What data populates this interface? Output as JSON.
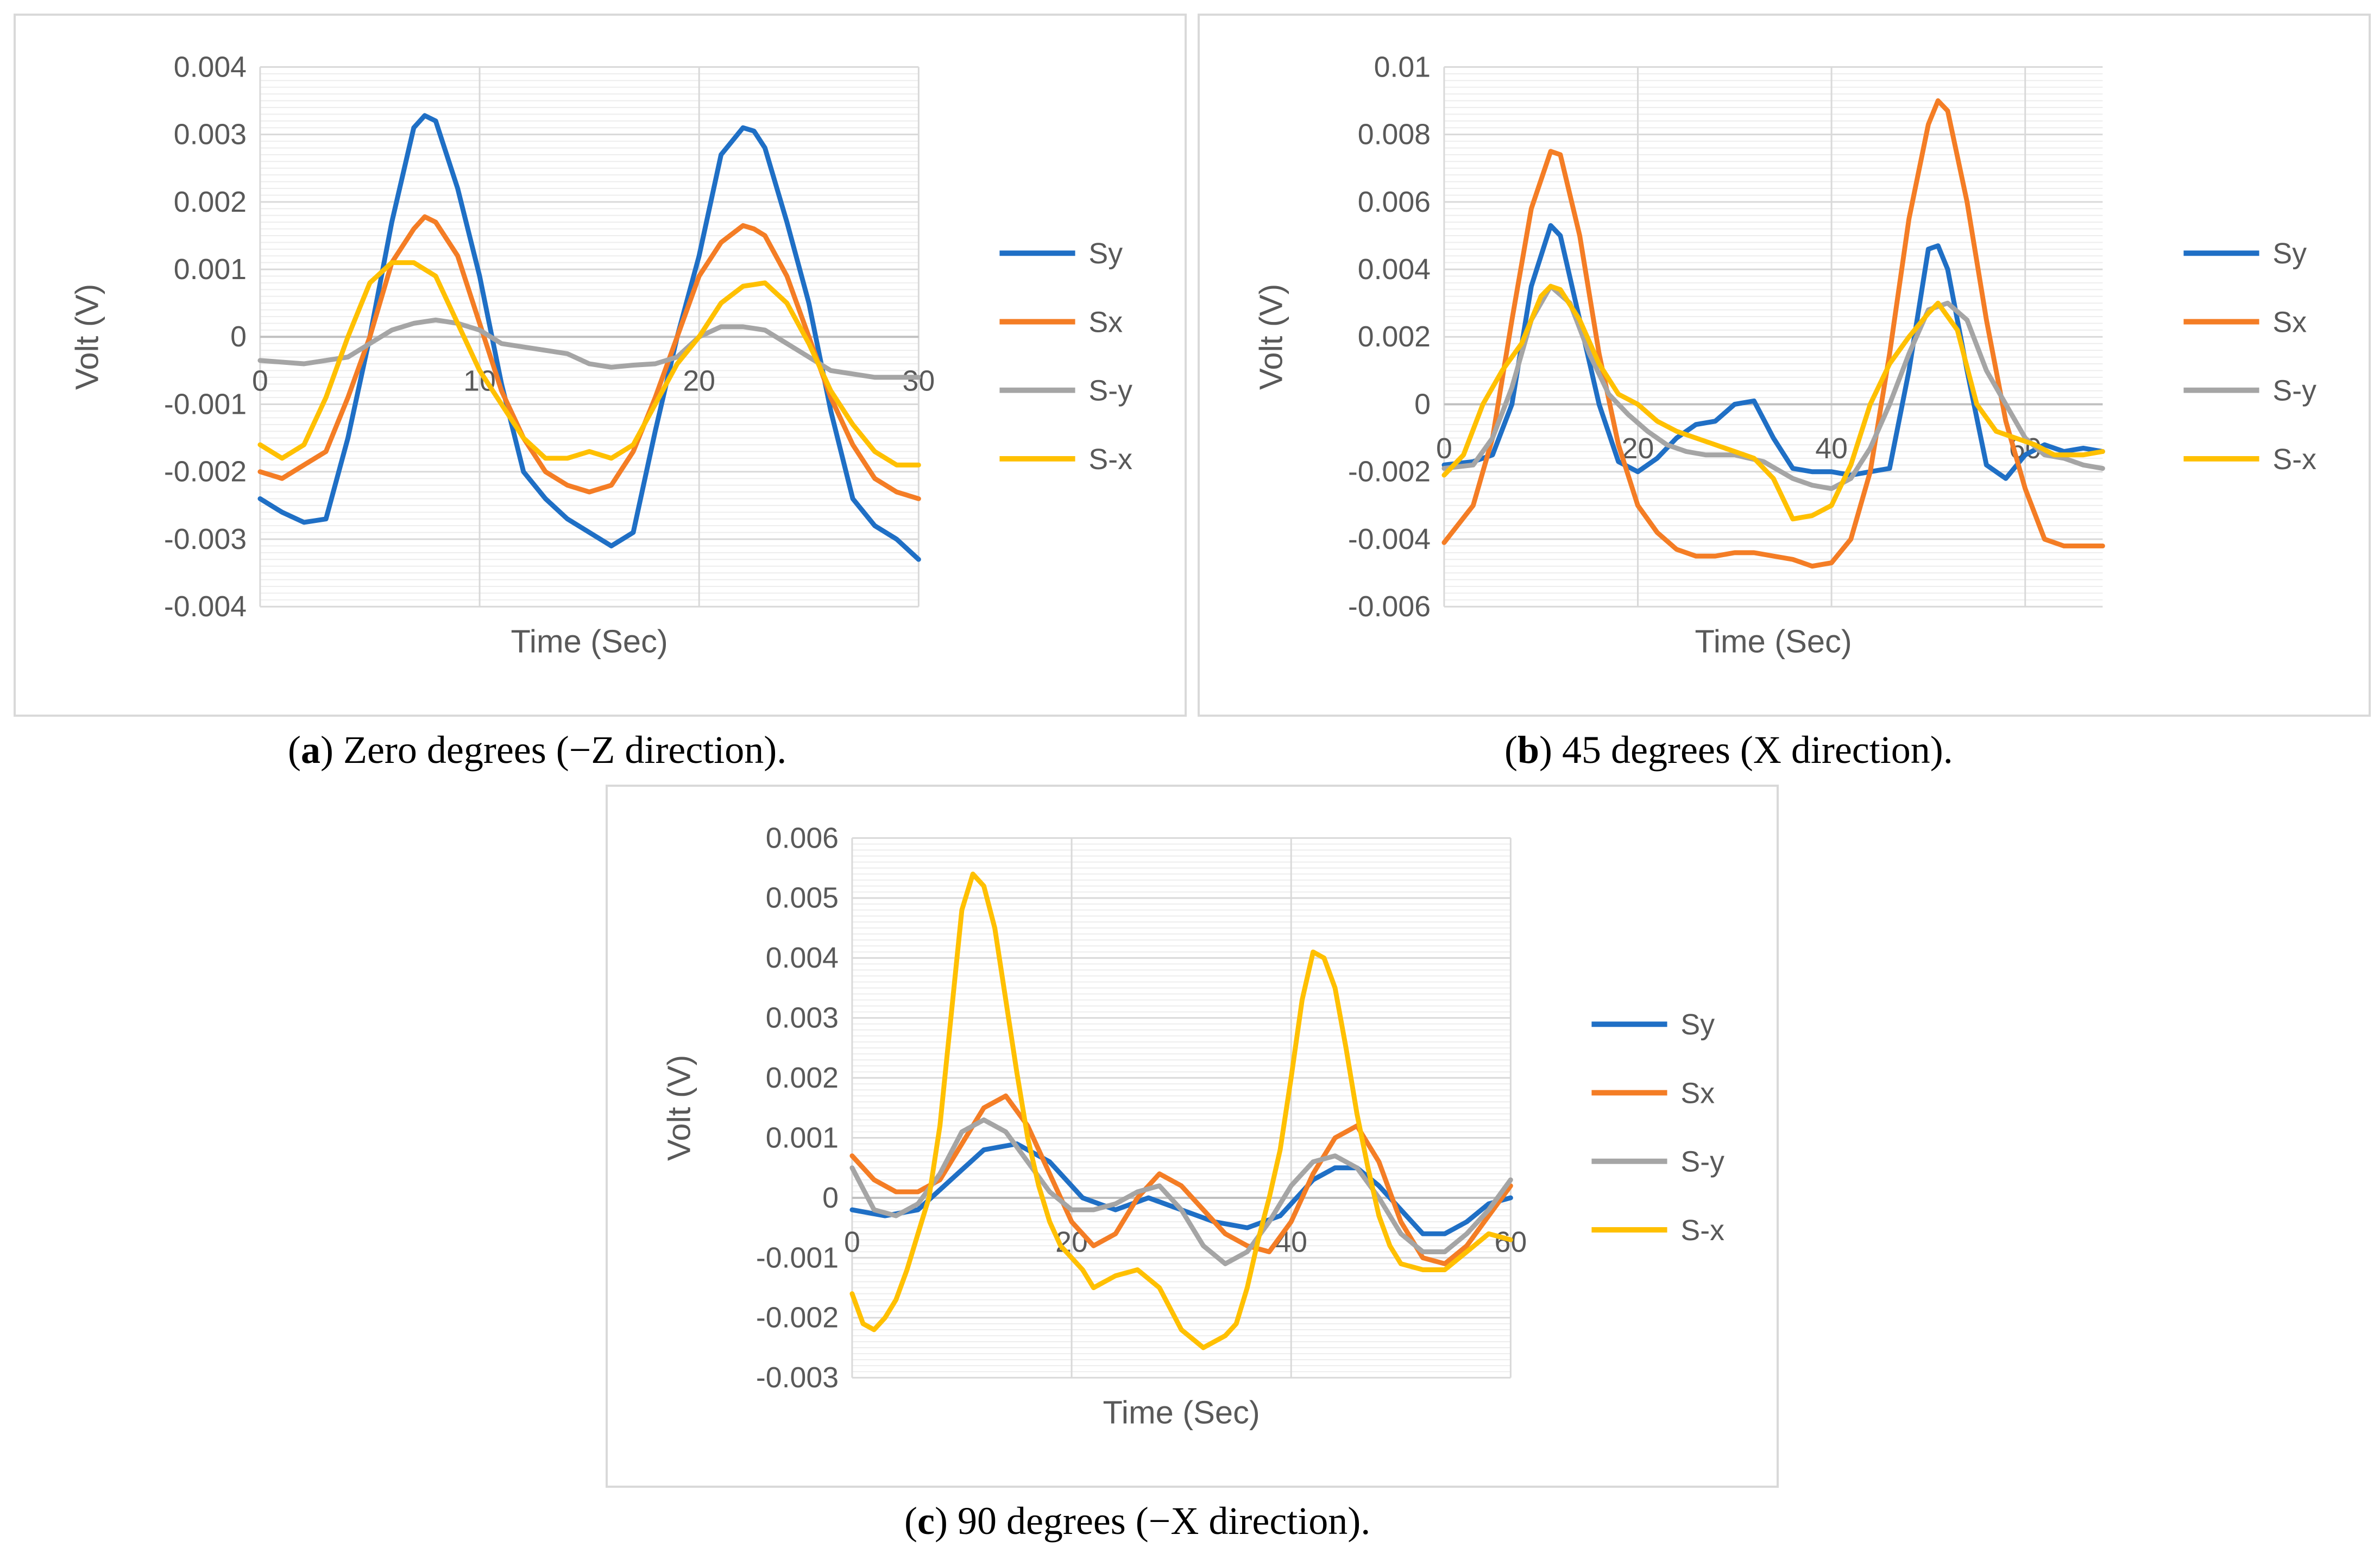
{
  "colors": {
    "Sy": "#1f6fc5",
    "Sx": "#f47d25",
    "S-y": "#a5a5a5",
    "S-x": "#ffc000",
    "grid_major": "#d9d9d9",
    "grid_minor": "#ededed",
    "axis_text": "#595959"
  },
  "chart_data": [
    {
      "id": "a",
      "type": "line",
      "caption_label": "a",
      "caption_text": "Zero degrees (−Z direction).",
      "xlabel": "Time (Sec)",
      "ylabel": "Volt (V)",
      "xlim": [
        0,
        30
      ],
      "ylim": [
        -0.004,
        0.004
      ],
      "xticks": [
        0,
        10,
        20,
        30
      ],
      "yticks": [
        -0.004,
        -0.003,
        -0.002,
        -0.001,
        0,
        0.001,
        0.002,
        0.003,
        0.004
      ],
      "ytick_labels": [
        "-0.004",
        "-0.003",
        "-0.002",
        "-0.001",
        "0",
        "0.001",
        "0.002",
        "0.003",
        "0.004"
      ],
      "xtick_labels": [
        "0",
        "10",
        "20",
        "30"
      ],
      "legend": [
        "Sy",
        "Sx",
        "S-y",
        "S-x"
      ],
      "series": [
        {
          "name": "Sy",
          "x": [
            0,
            1,
            2,
            3,
            4,
            5,
            6,
            7,
            7.5,
            8,
            9,
            10,
            11,
            12,
            13,
            14,
            15,
            16,
            17,
            18,
            19,
            20,
            21,
            22,
            22.5,
            23,
            24,
            25,
            26,
            27,
            28,
            29,
            30
          ],
          "y": [
            -0.0024,
            -0.0026,
            -0.00275,
            -0.0027,
            -0.0015,
            0,
            0.0017,
            0.0031,
            0.00328,
            0.0032,
            0.0022,
            0.0009,
            -0.0007,
            -0.002,
            -0.0024,
            -0.0027,
            -0.0029,
            -0.0031,
            -0.0029,
            -0.0014,
            0,
            0.0012,
            0.0027,
            0.0031,
            0.00305,
            0.0028,
            0.0017,
            0.0005,
            -0.0011,
            -0.0024,
            -0.0028,
            -0.003,
            -0.0033
          ]
        },
        {
          "name": "Sx",
          "x": [
            0,
            1,
            2,
            3,
            4,
            5,
            6,
            7,
            7.5,
            8,
            9,
            10,
            11,
            12,
            13,
            14,
            15,
            16,
            17,
            18,
            19,
            20,
            21,
            22,
            22.5,
            23,
            24,
            25,
            26,
            27,
            28,
            29,
            30
          ],
          "y": [
            -0.002,
            -0.0021,
            -0.0019,
            -0.0017,
            -0.0009,
            0,
            0.0011,
            0.0016,
            0.00178,
            0.0017,
            0.0012,
            0.0002,
            -0.0008,
            -0.0015,
            -0.002,
            -0.0022,
            -0.0023,
            -0.0022,
            -0.0017,
            -0.0009,
            0,
            0.0009,
            0.0014,
            0.00165,
            0.0016,
            0.0015,
            0.0009,
            0,
            -0.0009,
            -0.0016,
            -0.0021,
            -0.0023,
            -0.0024
          ]
        },
        {
          "name": "S-y",
          "x": [
            0,
            2,
            4,
            5,
            6,
            7,
            8,
            9,
            10,
            11,
            12,
            13,
            14,
            15,
            16,
            17,
            18,
            19,
            20,
            21,
            22,
            23,
            24,
            25,
            26,
            27,
            28,
            29,
            30
          ],
          "y": [
            -0.00035,
            -0.0004,
            -0.0003,
            -0.0001,
            0.0001,
            0.0002,
            0.00025,
            0.0002,
            0.0001,
            -0.0001,
            -0.00015,
            -0.0002,
            -0.00025,
            -0.0004,
            -0.00045,
            -0.00042,
            -0.0004,
            -0.0003,
            0,
            0.00015,
            0.00015,
            0.0001,
            -0.0001,
            -0.0003,
            -0.0005,
            -0.00055,
            -0.0006,
            -0.0006,
            -0.0006
          ]
        },
        {
          "name": "S-x",
          "x": [
            0,
            1,
            2,
            3,
            4,
            5,
            6,
            7,
            8,
            9,
            10,
            11,
            12,
            13,
            14,
            15,
            16,
            17,
            18,
            19,
            20,
            21,
            22,
            23,
            24,
            25,
            26,
            27,
            28,
            29,
            30
          ],
          "y": [
            -0.0016,
            -0.0018,
            -0.0016,
            -0.0009,
            0,
            0.0008,
            0.0011,
            0.0011,
            0.0009,
            0.0002,
            -0.0005,
            -0.001,
            -0.0015,
            -0.0018,
            -0.0018,
            -0.0017,
            -0.0018,
            -0.0016,
            -0.001,
            -0.0004,
            0,
            0.0005,
            0.00075,
            0.0008,
            0.0005,
            -0.0001,
            -0.0008,
            -0.0013,
            -0.0017,
            -0.0019,
            -0.0019
          ]
        }
      ]
    },
    {
      "id": "b",
      "type": "line",
      "caption_label": "b",
      "caption_text": "45 degrees (X direction).",
      "xlabel": "Time (Sec)",
      "ylabel": "Volt (V)",
      "xlim": [
        0,
        68
      ],
      "ylim": [
        -0.006,
        0.01
      ],
      "xticks": [
        0,
        20,
        40,
        60
      ],
      "yticks": [
        -0.006,
        -0.004,
        -0.002,
        0,
        0.002,
        0.004,
        0.006,
        0.008,
        0.01
      ],
      "ytick_labels": [
        "-0.006",
        "-0.004",
        "-0.002",
        "0",
        "0.002",
        "0.004",
        "0.006",
        "0.008",
        "0.01"
      ],
      "xtick_labels": [
        "0",
        "20",
        "40",
        "60"
      ],
      "legend": [
        "Sy",
        "Sx",
        "S-y",
        "S-x"
      ],
      "series": [
        {
          "name": "Sy",
          "x": [
            0,
            3,
            5,
            7,
            9,
            11,
            12,
            14,
            16,
            18,
            20,
            22,
            24,
            26,
            28,
            30,
            32,
            34,
            36,
            38,
            40,
            42,
            44,
            46,
            48,
            50,
            51,
            52,
            54,
            56,
            58,
            60,
            62,
            64,
            66,
            68
          ],
          "y": [
            -0.0018,
            -0.0017,
            -0.0015,
            0,
            0.0035,
            0.0053,
            0.005,
            0.0025,
            0,
            -0.0017,
            -0.002,
            -0.0016,
            -0.001,
            -0.0006,
            -0.0005,
            0,
            0.0001,
            -0.001,
            -0.0019,
            -0.002,
            -0.002,
            -0.0021,
            -0.002,
            -0.0019,
            0.001,
            0.0046,
            0.0047,
            0.004,
            0.001,
            -0.0018,
            -0.0022,
            -0.0015,
            -0.0012,
            -0.0014,
            -0.0013,
            -0.0014
          ]
        },
        {
          "name": "Sx",
          "x": [
            0,
            3,
            5,
            7,
            9,
            11,
            12,
            14,
            16,
            18,
            20,
            22,
            24,
            26,
            28,
            30,
            32,
            34,
            36,
            38,
            40,
            42,
            44,
            46,
            48,
            50,
            51,
            52,
            54,
            56,
            58,
            60,
            62,
            64,
            66,
            68
          ],
          "y": [
            -0.0041,
            -0.003,
            -0.001,
            0.0025,
            0.0058,
            0.0075,
            0.0074,
            0.005,
            0.0015,
            -0.0012,
            -0.003,
            -0.0038,
            -0.0043,
            -0.0045,
            -0.0045,
            -0.0044,
            -0.0044,
            -0.0045,
            -0.0046,
            -0.0048,
            -0.0047,
            -0.004,
            -0.002,
            0.0015,
            0.0055,
            0.0083,
            0.009,
            0.0087,
            0.006,
            0.0025,
            -0.0005,
            -0.0025,
            -0.004,
            -0.0042,
            -0.0042,
            -0.0042
          ]
        },
        {
          "name": "S-y",
          "x": [
            0,
            3,
            5,
            7,
            9,
            11,
            13,
            15,
            17,
            19,
            21,
            23,
            25,
            27,
            30,
            33,
            36,
            38,
            40,
            42,
            44,
            46,
            48,
            50,
            52,
            54,
            56,
            58,
            60,
            62,
            64,
            66,
            68
          ],
          "y": [
            -0.0019,
            -0.0018,
            -0.001,
            0.0005,
            0.0025,
            0.0035,
            0.003,
            0.0015,
            0.0003,
            -0.0003,
            -0.0008,
            -0.0012,
            -0.0014,
            -0.0015,
            -0.0015,
            -0.0017,
            -0.0022,
            -0.0024,
            -0.0025,
            -0.0022,
            -0.0013,
            0,
            0.0015,
            0.0028,
            0.003,
            0.0025,
            0.001,
            0,
            -0.001,
            -0.0015,
            -0.0016,
            -0.0018,
            -0.0019
          ]
        },
        {
          "name": "S-x",
          "x": [
            0,
            2,
            4,
            6,
            8,
            10,
            11,
            12,
            14,
            16,
            18,
            20,
            22,
            24,
            26,
            28,
            30,
            32,
            34,
            36,
            38,
            40,
            42,
            44,
            46,
            48,
            50,
            51,
            53,
            55,
            57,
            59,
            61,
            63,
            66,
            68
          ],
          "y": [
            -0.0021,
            -0.0015,
            0,
            0.001,
            0.0018,
            0.0032,
            0.0035,
            0.0034,
            0.0025,
            0.0012,
            0.0003,
            0,
            -0.0005,
            -0.0008,
            -0.001,
            -0.0012,
            -0.0014,
            -0.0016,
            -0.0022,
            -0.0034,
            -0.0033,
            -0.003,
            -0.0018,
            0,
            0.0012,
            0.002,
            0.0027,
            0.003,
            0.0022,
            0,
            -0.0008,
            -0.001,
            -0.0012,
            -0.0015,
            -0.0015,
            -0.0014
          ]
        }
      ]
    },
    {
      "id": "c",
      "type": "line",
      "caption_label": "c",
      "caption_text": "90 degrees (−X direction).",
      "xlabel": "Time (Sec)",
      "ylabel": "Volt (V)",
      "xlim": [
        0,
        60
      ],
      "ylim": [
        -0.003,
        0.006
      ],
      "xticks": [
        0,
        20,
        40,
        60
      ],
      "yticks": [
        -0.003,
        -0.002,
        -0.001,
        0,
        0.001,
        0.002,
        0.003,
        0.004,
        0.005,
        0.006
      ],
      "ytick_labels": [
        "-0.003",
        "-0.002",
        "-0.001",
        "0",
        "0.001",
        "0.002",
        "0.003",
        "0.004",
        "0.005",
        "0.006"
      ],
      "xtick_labels": [
        "0",
        "20",
        "40",
        "60"
      ],
      "legend": [
        "Sy",
        "Sx",
        "S-y",
        "S-x"
      ],
      "series": [
        {
          "name": "Sy",
          "x": [
            0,
            3,
            6,
            9,
            12,
            15,
            18,
            21,
            24,
            27,
            30,
            33,
            36,
            39,
            42,
            44,
            46,
            48,
            50,
            52,
            54,
            56,
            58,
            60
          ],
          "y": [
            -0.0002,
            -0.0003,
            -0.0002,
            0.0003,
            0.0008,
            0.0009,
            0.0006,
            0,
            -0.0002,
            0,
            -0.0002,
            -0.0004,
            -0.0005,
            -0.0003,
            0.0003,
            0.0005,
            0.0005,
            0.0002,
            -0.0002,
            -0.0006,
            -0.0006,
            -0.0004,
            -0.0001,
            0
          ]
        },
        {
          "name": "Sx",
          "x": [
            0,
            2,
            4,
            6,
            8,
            10,
            12,
            14,
            16,
            18,
            20,
            22,
            24,
            26,
            28,
            30,
            32,
            34,
            36,
            38,
            40,
            42,
            44,
            46,
            48,
            50,
            52,
            54,
            56,
            58,
            60
          ],
          "y": [
            0.0007,
            0.0003,
            0.0001,
            0.0001,
            0.0003,
            0.0009,
            0.0015,
            0.0017,
            0.0012,
            0.0004,
            -0.0004,
            -0.0008,
            -0.0006,
            0,
            0.0004,
            0.0002,
            -0.0002,
            -0.0006,
            -0.0008,
            -0.0009,
            -0.0004,
            0.0004,
            0.001,
            0.0012,
            0.0006,
            -0.0004,
            -0.001,
            -0.0011,
            -0.0008,
            -0.0003,
            0.0002
          ]
        },
        {
          "name": "S-y",
          "x": [
            0,
            2,
            4,
            6,
            8,
            10,
            12,
            14,
            16,
            18,
            20,
            22,
            24,
            26,
            28,
            30,
            32,
            34,
            36,
            38,
            40,
            42,
            44,
            46,
            48,
            50,
            52,
            54,
            56,
            58,
            60
          ],
          "y": [
            0.0005,
            -0.0002,
            -0.0003,
            -0.0001,
            0.0004,
            0.0011,
            0.0013,
            0.0011,
            0.0006,
            0.0001,
            -0.0002,
            -0.0002,
            -0.0001,
            0.0001,
            0.0002,
            -0.0002,
            -0.0008,
            -0.0011,
            -0.0009,
            -0.0004,
            0.0002,
            0.0006,
            0.0007,
            0.0005,
            0,
            -0.0006,
            -0.0009,
            -0.0009,
            -0.0006,
            -0.0002,
            0.0003
          ]
        },
        {
          "name": "S-x",
          "x": [
            0,
            1,
            2,
            3,
            4,
            5,
            6,
            7,
            8,
            9,
            10,
            11,
            12,
            13,
            14,
            15,
            16,
            17,
            18,
            19,
            20,
            21,
            22,
            24,
            26,
            28,
            30,
            32,
            33,
            34,
            35,
            36,
            37,
            38,
            39,
            40,
            41,
            42,
            43,
            44,
            45,
            46,
            47,
            48,
            49,
            50,
            52,
            54,
            56,
            58,
            60
          ],
          "y": [
            -0.0016,
            -0.0021,
            -0.0022,
            -0.002,
            -0.0017,
            -0.0012,
            -0.0006,
            0,
            0.0012,
            0.003,
            0.0048,
            0.0054,
            0.0052,
            0.0045,
            0.0033,
            0.0021,
            0.001,
            0.0002,
            -0.0004,
            -0.0008,
            -0.001,
            -0.0012,
            -0.0015,
            -0.0013,
            -0.0012,
            -0.0015,
            -0.0022,
            -0.0025,
            -0.0024,
            -0.0023,
            -0.0021,
            -0.0015,
            -0.0007,
            0,
            0.0008,
            0.002,
            0.0033,
            0.0041,
            0.004,
            0.0035,
            0.0025,
            0.0014,
            0.0005,
            -0.0003,
            -0.0008,
            -0.0011,
            -0.0012,
            -0.0012,
            -0.0009,
            -0.0006,
            -0.0007
          ]
        }
      ]
    }
  ]
}
